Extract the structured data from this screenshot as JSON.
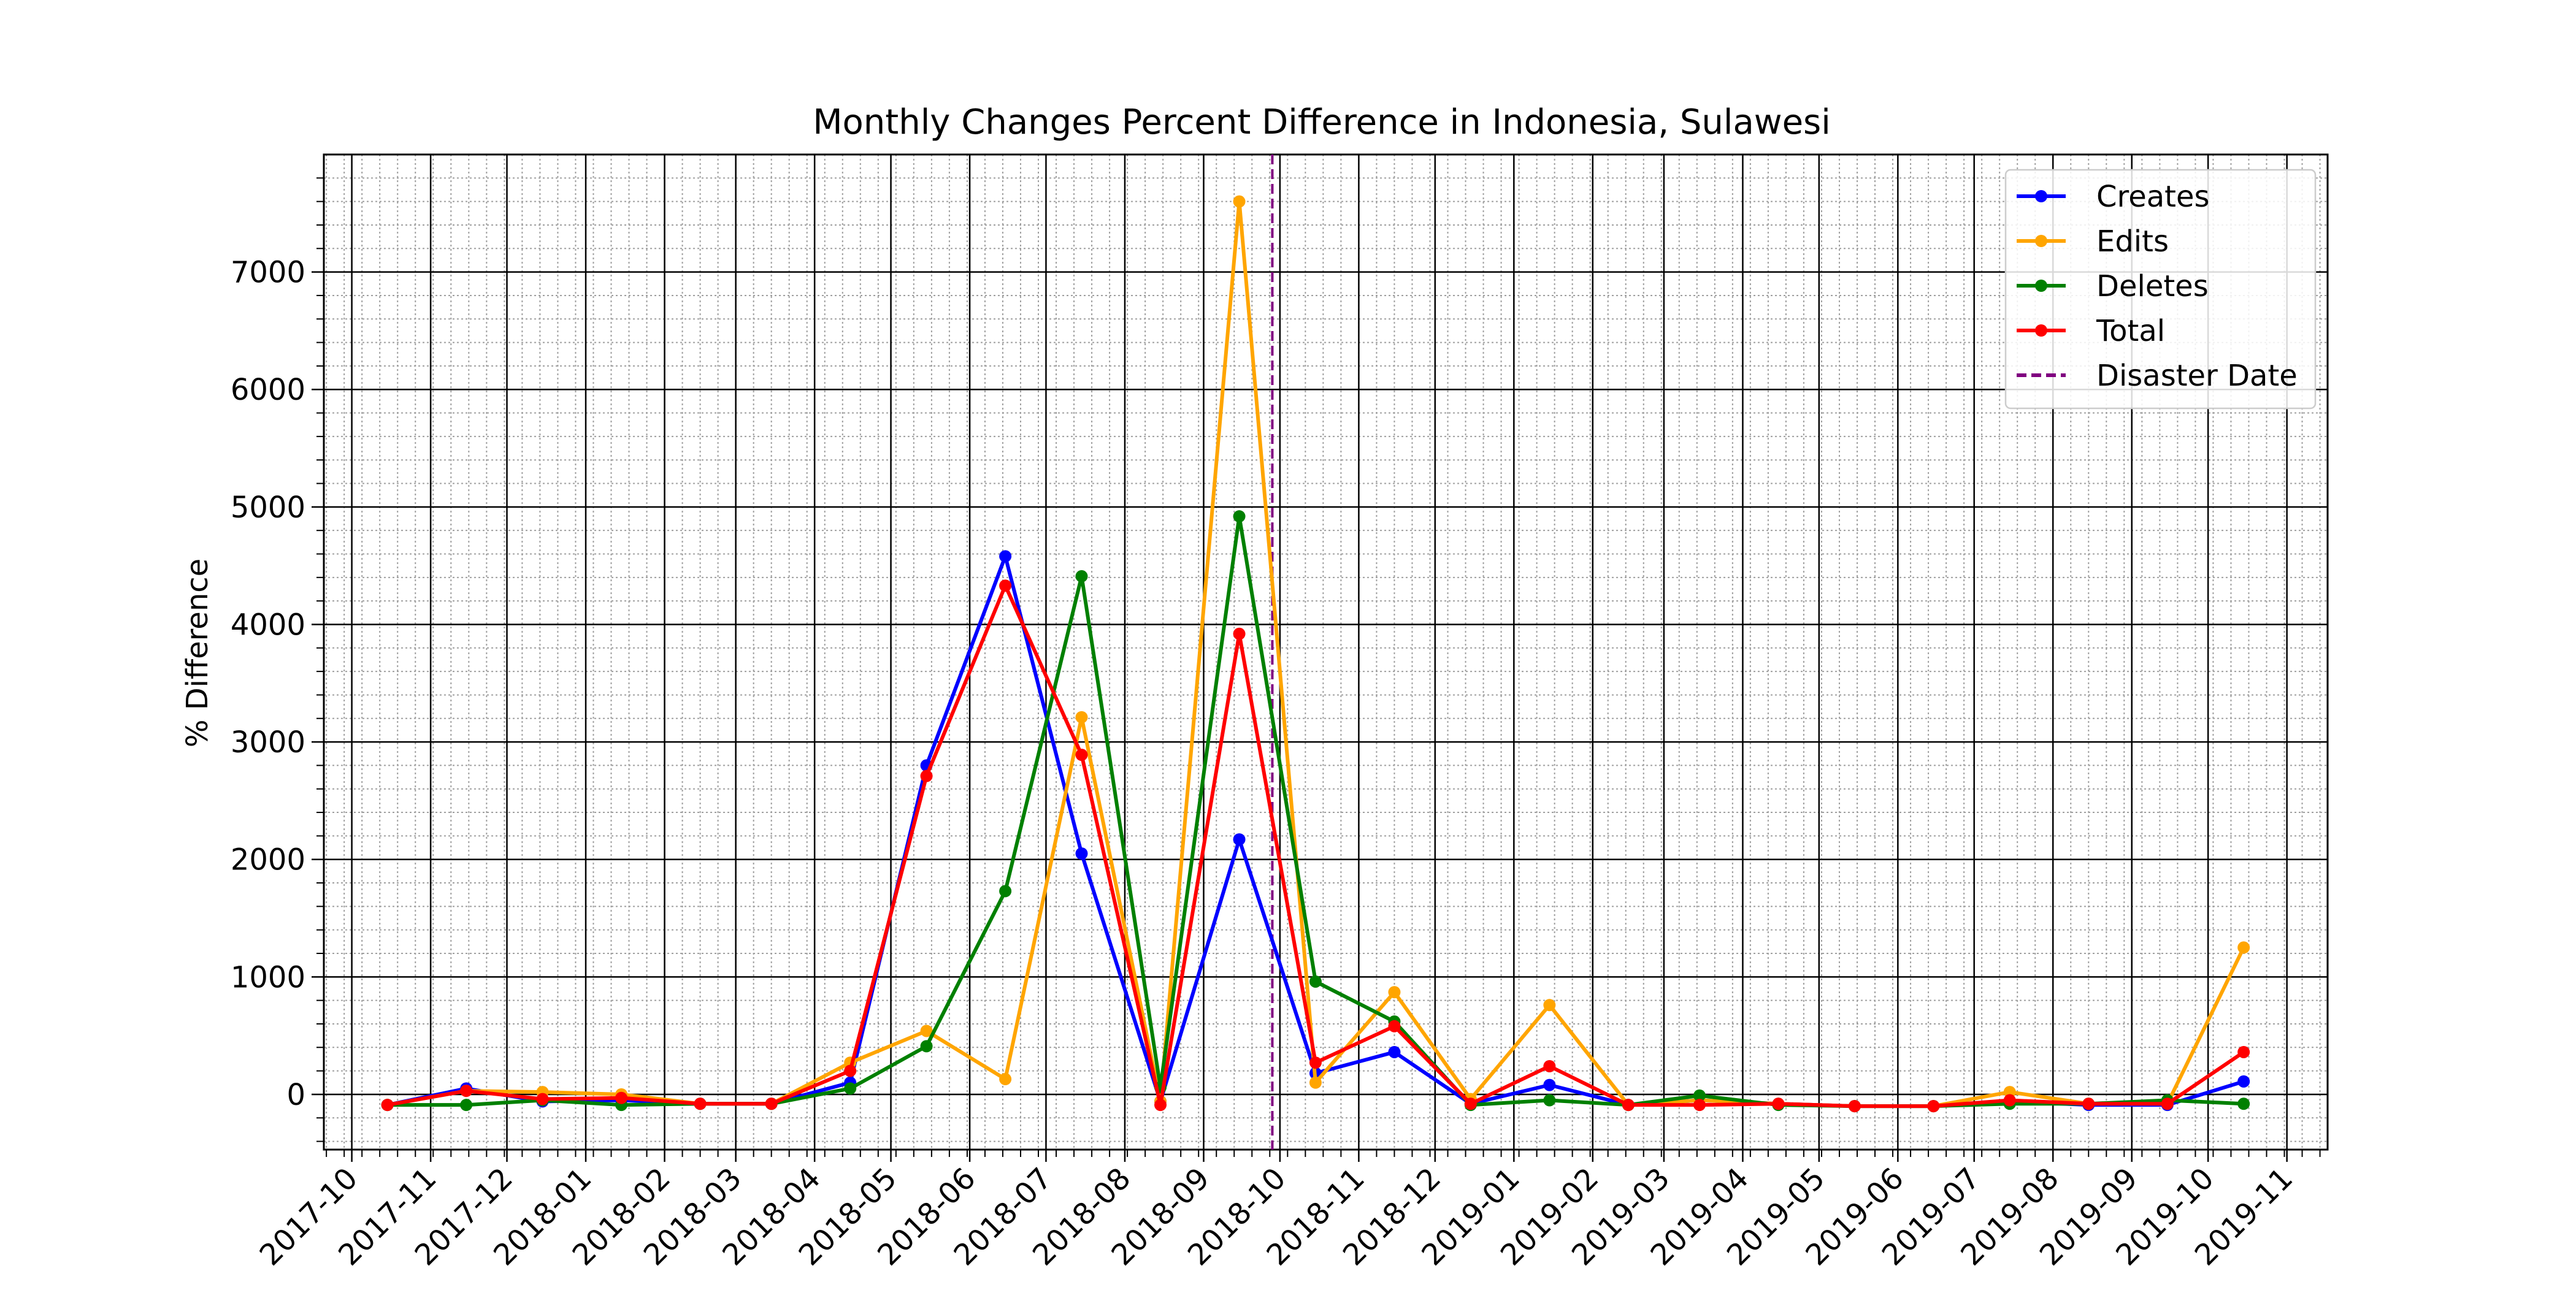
{
  "chart_data": {
    "type": "line",
    "title": "Monthly Changes Percent Difference in Indonesia, Sulawesi",
    "xlabel": "",
    "ylabel": "% Difference",
    "x": [
      "2017-10-15",
      "2017-11-15",
      "2017-12-15",
      "2018-01-15",
      "2018-02-15",
      "2018-03-15",
      "2018-04-15",
      "2018-05-15",
      "2018-06-15",
      "2018-07-15",
      "2018-08-15",
      "2018-09-15",
      "2018-10-15",
      "2018-11-15",
      "2018-12-15",
      "2019-01-15",
      "2019-02-15",
      "2019-03-15",
      "2019-04-15",
      "2019-05-15",
      "2019-06-15",
      "2019-07-15",
      "2019-08-15",
      "2019-09-15",
      "2019-10-15"
    ],
    "xticks": [
      "2017-10",
      "2017-11",
      "2017-12",
      "2018-01",
      "2018-02",
      "2018-03",
      "2018-04",
      "2018-05",
      "2018-06",
      "2018-07",
      "2018-08",
      "2018-09",
      "2018-10",
      "2018-11",
      "2018-12",
      "2019-01",
      "2019-02",
      "2019-03",
      "2019-04",
      "2019-05",
      "2019-06",
      "2019-07",
      "2019-08",
      "2019-09",
      "2019-10",
      "2019-11"
    ],
    "xlim": [
      "2017-09-20",
      "2019-11-17"
    ],
    "ylim": [
      -470,
      8000
    ],
    "yticks": [
      0,
      1000,
      2000,
      3000,
      4000,
      5000,
      6000,
      7000
    ],
    "grid": true,
    "minor_grid": true,
    "legend_position": "top-right",
    "series": [
      {
        "name": "Creates",
        "color": "#0000ff",
        "values": [
          -90,
          50,
          -60,
          -50,
          -80,
          -80,
          100,
          2800,
          4580,
          2050,
          -60,
          2170,
          180,
          360,
          -80,
          80,
          -90,
          -50,
          -80,
          -100,
          -100,
          -60,
          -90,
          -90,
          110
        ]
      },
      {
        "name": "Edits",
        "color": "#ffa500",
        "values": [
          -90,
          30,
          20,
          0,
          -80,
          -80,
          270,
          540,
          130,
          3210,
          -60,
          7600,
          100,
          870,
          -40,
          760,
          -90,
          -50,
          -80,
          -100,
          -100,
          20,
          -80,
          -80,
          1250
        ]
      },
      {
        "name": "Deletes",
        "color": "#008000",
        "values": [
          -90,
          -90,
          -50,
          -90,
          -80,
          -80,
          50,
          410,
          1730,
          4410,
          60,
          4920,
          960,
          620,
          -90,
          -50,
          -90,
          -10,
          -90,
          -100,
          -100,
          -80,
          -80,
          -50,
          -80
        ]
      },
      {
        "name": "Total",
        "color": "#ff0000",
        "values": [
          -90,
          30,
          -40,
          -30,
          -80,
          -80,
          200,
          2710,
          4330,
          2890,
          -90,
          3920,
          270,
          580,
          -80,
          240,
          -90,
          -90,
          -80,
          -100,
          -100,
          -50,
          -80,
          -80,
          360
        ]
      }
    ],
    "vline": {
      "name": "Disaster Date",
      "x": "2018-09-28",
      "color": "#800080",
      "style": "dashed"
    }
  }
}
